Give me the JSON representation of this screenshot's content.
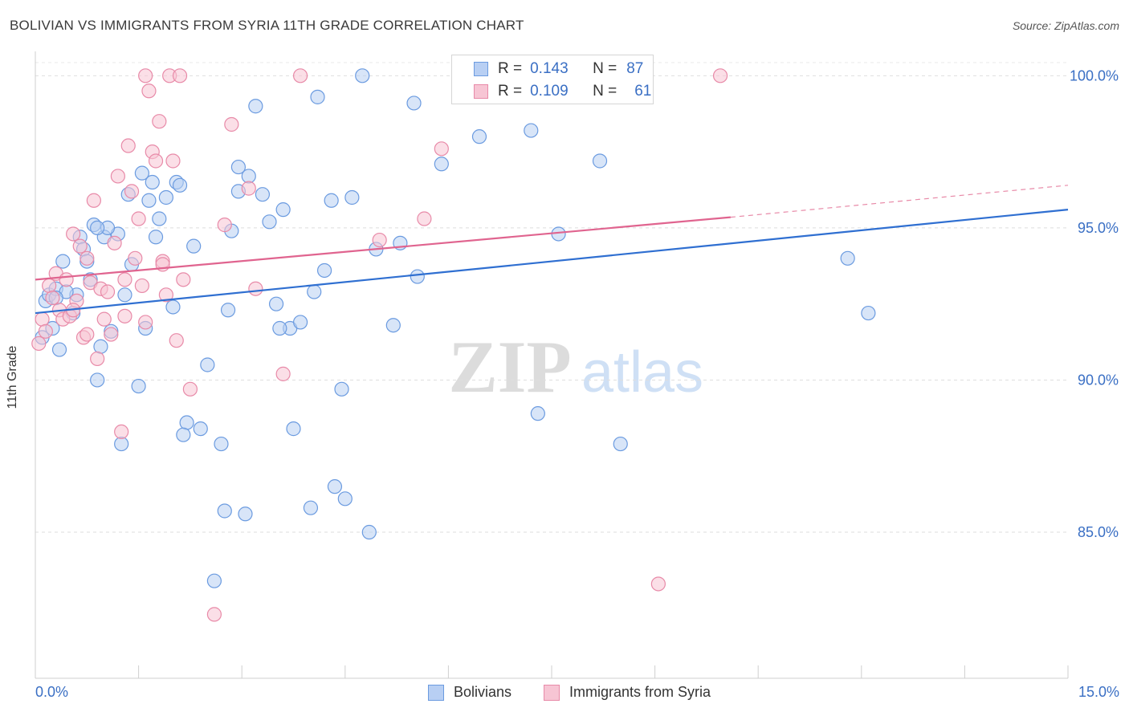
{
  "title": "BOLIVIAN VS IMMIGRANTS FROM SYRIA 11TH GRADE CORRELATION CHART",
  "source": "Source: ZipAtlas.com",
  "watermark": {
    "zip": "ZIP",
    "atlas": "atlas"
  },
  "legend": {
    "rows": [
      {
        "r_label": "R =",
        "r_value": "0.143",
        "n_label": "N =",
        "n_value": "87"
      },
      {
        "r_label": "R =",
        "r_value": "0.109",
        "n_label": "N =",
        "n_value": "61"
      }
    ]
  },
  "bottom_legend": {
    "series1": "Bolivians",
    "series2": "Immigrants from Syria"
  },
  "x_axis": {
    "min_label": "0.0%",
    "max_label": "15.0%"
  },
  "chart_data": {
    "type": "scatter",
    "title": "BOLIVIAN VS IMMIGRANTS FROM SYRIA 11TH GRADE CORRELATION CHART",
    "xlabel": "",
    "ylabel": "11th Grade",
    "xlim": [
      0,
      15
    ],
    "ylim": [
      80.2,
      100.8
    ],
    "y_ticks": [
      {
        "value": 85,
        "label": "85.0%"
      },
      {
        "value": 90,
        "label": "90.0%"
      },
      {
        "value": 95,
        "label": "95.0%"
      },
      {
        "value": 100,
        "label": "100.0%"
      }
    ],
    "grid": "horizontal-dashed",
    "legend_position": "top-center",
    "series": [
      {
        "name": "Bolivians",
        "color": "#6b9be0",
        "fill": "#b8cff3",
        "R": 0.143,
        "N": 87,
        "trend": {
          "x0": 0,
          "y0": 92.2,
          "x1": 15,
          "y1": 95.6
        },
        "points": [
          [
            0.1,
            91.4
          ],
          [
            0.15,
            92.6
          ],
          [
            0.2,
            92.8
          ],
          [
            0.25,
            91.7
          ],
          [
            0.3,
            93.0
          ],
          [
            0.35,
            91.0
          ],
          [
            0.4,
            93.9
          ],
          [
            0.55,
            92.2
          ],
          [
            0.6,
            92.8
          ],
          [
            0.65,
            94.7
          ],
          [
            0.7,
            94.3
          ],
          [
            0.75,
            93.9
          ],
          [
            0.8,
            93.3
          ],
          [
            0.85,
            95.1
          ],
          [
            0.9,
            90.0
          ],
          [
            0.95,
            91.1
          ],
          [
            1.0,
            94.7
          ],
          [
            1.1,
            91.6
          ],
          [
            1.2,
            94.8
          ],
          [
            1.25,
            87.9
          ],
          [
            1.3,
            92.8
          ],
          [
            1.35,
            96.1
          ],
          [
            1.4,
            93.8
          ],
          [
            1.5,
            89.8
          ],
          [
            1.55,
            96.8
          ],
          [
            1.6,
            91.7
          ],
          [
            1.7,
            96.5
          ],
          [
            1.75,
            94.7
          ],
          [
            1.8,
            95.3
          ],
          [
            1.9,
            96.0
          ],
          [
            2.0,
            92.4
          ],
          [
            2.05,
            96.5
          ],
          [
            2.1,
            96.4
          ],
          [
            2.2,
            88.6
          ],
          [
            2.3,
            94.4
          ],
          [
            2.4,
            88.4
          ],
          [
            2.5,
            90.5
          ],
          [
            2.6,
            83.4
          ],
          [
            2.7,
            87.9
          ],
          [
            2.75,
            85.7
          ],
          [
            2.8,
            92.3
          ],
          [
            2.85,
            94.9
          ],
          [
            2.95,
            97.0
          ],
          [
            3.05,
            85.6
          ],
          [
            3.1,
            96.7
          ],
          [
            3.2,
            99.0
          ],
          [
            3.3,
            96.1
          ],
          [
            3.4,
            95.2
          ],
          [
            3.5,
            92.5
          ],
          [
            3.6,
            95.6
          ],
          [
            3.7,
            91.7
          ],
          [
            3.75,
            88.4
          ],
          [
            3.85,
            91.9
          ],
          [
            4.1,
            99.3
          ],
          [
            4.0,
            85.8
          ],
          [
            4.2,
            93.6
          ],
          [
            4.3,
            95.9
          ],
          [
            4.35,
            86.5
          ],
          [
            4.45,
            89.7
          ],
          [
            4.5,
            86.1
          ],
          [
            4.6,
            96.0
          ],
          [
            4.75,
            100.0
          ],
          [
            4.85,
            85.0
          ],
          [
            4.95,
            94.3
          ],
          [
            5.2,
            91.8
          ],
          [
            5.3,
            94.5
          ],
          [
            5.5,
            99.1
          ],
          [
            5.55,
            93.4
          ],
          [
            5.9,
            97.1
          ],
          [
            6.4,
            100.0
          ],
          [
            6.45,
            98.0
          ],
          [
            7.2,
            98.2
          ],
          [
            7.6,
            94.8
          ],
          [
            7.3,
            88.9
          ],
          [
            8.2,
            97.2
          ],
          [
            8.5,
            87.9
          ],
          [
            11.8,
            94.0
          ],
          [
            12.1,
            92.2
          ],
          [
            1.05,
            95.0
          ],
          [
            0.45,
            92.9
          ],
          [
            2.15,
            88.2
          ],
          [
            3.55,
            91.7
          ],
          [
            4.05,
            92.9
          ],
          [
            1.65,
            95.9
          ],
          [
            0.9,
            95.0
          ],
          [
            2.95,
            96.2
          ],
          [
            0.3,
            92.7
          ]
        ]
      },
      {
        "name": "Immigrants from Syria",
        "color": "#e88aa8",
        "fill": "#f7c5d4",
        "R": 0.109,
        "N": 61,
        "trend": {
          "x0": 0,
          "y0": 93.3,
          "x1": 10.1,
          "y1": 95.35,
          "dash_to_x": 15,
          "dash_to_y": 96.4
        },
        "points": [
          [
            0.05,
            91.2
          ],
          [
            0.1,
            92.0
          ],
          [
            0.15,
            91.6
          ],
          [
            0.2,
            93.1
          ],
          [
            0.25,
            92.7
          ],
          [
            0.3,
            93.5
          ],
          [
            0.35,
            92.3
          ],
          [
            0.4,
            92.0
          ],
          [
            0.45,
            93.3
          ],
          [
            0.5,
            92.1
          ],
          [
            0.55,
            94.8
          ],
          [
            0.6,
            92.6
          ],
          [
            0.65,
            94.4
          ],
          [
            0.7,
            91.4
          ],
          [
            0.75,
            91.5
          ],
          [
            0.8,
            93.2
          ],
          [
            0.85,
            95.9
          ],
          [
            0.9,
            90.7
          ],
          [
            0.95,
            93.0
          ],
          [
            1.0,
            92.0
          ],
          [
            1.05,
            92.9
          ],
          [
            1.1,
            91.5
          ],
          [
            1.15,
            94.5
          ],
          [
            1.2,
            96.7
          ],
          [
            1.25,
            88.3
          ],
          [
            1.3,
            92.1
          ],
          [
            1.35,
            97.7
          ],
          [
            1.4,
            96.2
          ],
          [
            1.45,
            94.0
          ],
          [
            1.5,
            95.3
          ],
          [
            1.55,
            93.1
          ],
          [
            1.6,
            91.9
          ],
          [
            1.65,
            99.5
          ],
          [
            1.7,
            97.5
          ],
          [
            1.75,
            97.2
          ],
          [
            1.8,
            98.5
          ],
          [
            1.85,
            93.9
          ],
          [
            1.9,
            92.8
          ],
          [
            1.95,
            100.0
          ],
          [
            2.05,
            91.3
          ],
          [
            2.15,
            93.3
          ],
          [
            2.25,
            89.7
          ],
          [
            2.6,
            82.3
          ],
          [
            2.75,
            95.1
          ],
          [
            2.85,
            98.4
          ],
          [
            3.1,
            96.3
          ],
          [
            3.2,
            93.0
          ],
          [
            3.6,
            90.2
          ],
          [
            3.85,
            100.0
          ],
          [
            5.0,
            94.6
          ],
          [
            5.65,
            95.3
          ],
          [
            5.9,
            97.6
          ],
          [
            9.05,
            83.3
          ],
          [
            9.95,
            100.0
          ],
          [
            1.6,
            100.0
          ],
          [
            2.1,
            100.0
          ],
          [
            0.75,
            94.0
          ],
          [
            1.3,
            93.3
          ],
          [
            2.0,
            97.2
          ],
          [
            0.55,
            92.3
          ],
          [
            1.85,
            93.8
          ]
        ]
      }
    ]
  }
}
